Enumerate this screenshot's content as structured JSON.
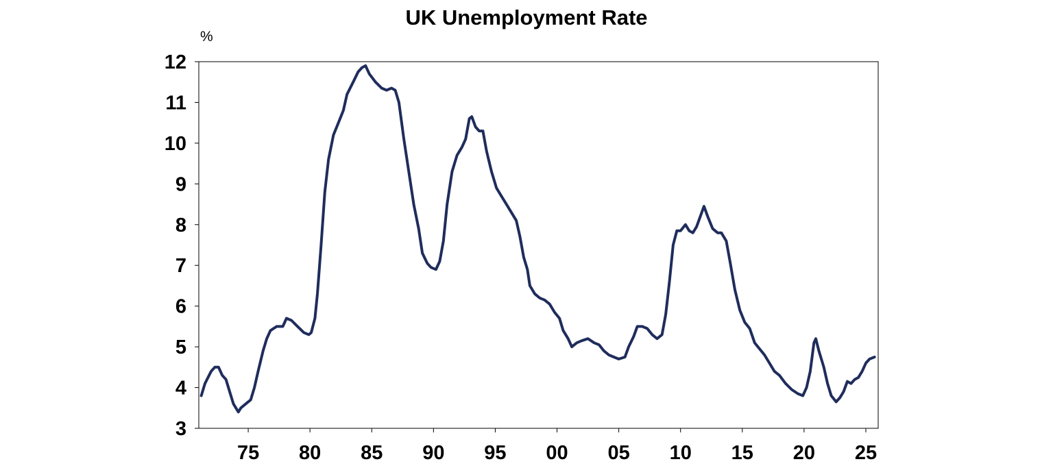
{
  "chart_data": {
    "type": "line",
    "title": "UK Unemployment Rate",
    "y_unit": "%",
    "xlabel": "",
    "ylabel": "",
    "xlim": [
      1971,
      2026
    ],
    "ylim": [
      3,
      12
    ],
    "y_ticks": [
      3,
      4,
      5,
      6,
      7,
      8,
      9,
      10,
      11,
      12
    ],
    "x_ticks": [
      {
        "year": 1975,
        "label": "75"
      },
      {
        "year": 1980,
        "label": "80"
      },
      {
        "year": 1985,
        "label": "85"
      },
      {
        "year": 1990,
        "label": "90"
      },
      {
        "year": 1995,
        "label": "95"
      },
      {
        "year": 2000,
        "label": "00"
      },
      {
        "year": 2005,
        "label": "05"
      },
      {
        "year": 2010,
        "label": "10"
      },
      {
        "year": 2015,
        "label": "15"
      },
      {
        "year": 2020,
        "label": "20"
      },
      {
        "year": 2025,
        "label": "25"
      }
    ],
    "grid": false,
    "line_color": "#1f2d5c",
    "series": [
      {
        "name": "",
        "points": [
          [
            1971.2,
            3.8
          ],
          [
            1971.5,
            4.1
          ],
          [
            1972.0,
            4.4
          ],
          [
            1972.3,
            4.5
          ],
          [
            1972.6,
            4.5
          ],
          [
            1972.9,
            4.3
          ],
          [
            1973.2,
            4.2
          ],
          [
            1973.5,
            3.9
          ],
          [
            1973.8,
            3.6
          ],
          [
            1974.2,
            3.4
          ],
          [
            1974.4,
            3.5
          ],
          [
            1974.8,
            3.6
          ],
          [
            1975.2,
            3.7
          ],
          [
            1975.5,
            4.0
          ],
          [
            1975.8,
            4.4
          ],
          [
            1976.2,
            4.9
          ],
          [
            1976.5,
            5.2
          ],
          [
            1976.8,
            5.4
          ],
          [
            1977.3,
            5.5
          ],
          [
            1977.8,
            5.5
          ],
          [
            1978.1,
            5.7
          ],
          [
            1978.5,
            5.65
          ],
          [
            1979.0,
            5.5
          ],
          [
            1979.5,
            5.35
          ],
          [
            1979.9,
            5.3
          ],
          [
            1980.1,
            5.35
          ],
          [
            1980.4,
            5.7
          ],
          [
            1980.6,
            6.3
          ],
          [
            1980.9,
            7.5
          ],
          [
            1981.2,
            8.8
          ],
          [
            1981.5,
            9.6
          ],
          [
            1981.9,
            10.2
          ],
          [
            1982.3,
            10.5
          ],
          [
            1982.7,
            10.8
          ],
          [
            1983.0,
            11.2
          ],
          [
            1983.5,
            11.5
          ],
          [
            1983.9,
            11.75
          ],
          [
            1984.2,
            11.85
          ],
          [
            1984.5,
            11.9
          ],
          [
            1984.8,
            11.7
          ],
          [
            1985.3,
            11.5
          ],
          [
            1985.8,
            11.35
          ],
          [
            1986.2,
            11.3
          ],
          [
            1986.6,
            11.35
          ],
          [
            1986.9,
            11.3
          ],
          [
            1987.2,
            11.0
          ],
          [
            1987.6,
            10.1
          ],
          [
            1988.0,
            9.3
          ],
          [
            1988.4,
            8.5
          ],
          [
            1988.8,
            7.9
          ],
          [
            1989.1,
            7.3
          ],
          [
            1989.5,
            7.05
          ],
          [
            1989.8,
            6.95
          ],
          [
            1990.2,
            6.9
          ],
          [
            1990.5,
            7.1
          ],
          [
            1990.8,
            7.6
          ],
          [
            1991.1,
            8.5
          ],
          [
            1991.5,
            9.3
          ],
          [
            1991.9,
            9.7
          ],
          [
            1992.3,
            9.9
          ],
          [
            1992.6,
            10.1
          ],
          [
            1992.9,
            10.6
          ],
          [
            1993.1,
            10.65
          ],
          [
            1993.4,
            10.4
          ],
          [
            1993.7,
            10.3
          ],
          [
            1994.0,
            10.3
          ],
          [
            1994.3,
            9.8
          ],
          [
            1994.7,
            9.3
          ],
          [
            1995.1,
            8.9
          ],
          [
            1995.5,
            8.7
          ],
          [
            1995.9,
            8.5
          ],
          [
            1996.3,
            8.3
          ],
          [
            1996.7,
            8.1
          ],
          [
            1997.0,
            7.7
          ],
          [
            1997.3,
            7.2
          ],
          [
            1997.6,
            6.9
          ],
          [
            1997.8,
            6.5
          ],
          [
            1998.2,
            6.3
          ],
          [
            1998.6,
            6.2
          ],
          [
            1999.0,
            6.15
          ],
          [
            1999.4,
            6.05
          ],
          [
            1999.8,
            5.85
          ],
          [
            2000.2,
            5.7
          ],
          [
            2000.5,
            5.4
          ],
          [
            2000.9,
            5.2
          ],
          [
            2001.2,
            5.0
          ],
          [
            2001.6,
            5.1
          ],
          [
            2002.0,
            5.15
          ],
          [
            2002.5,
            5.2
          ],
          [
            2003.0,
            5.1
          ],
          [
            2003.4,
            5.05
          ],
          [
            2003.8,
            4.9
          ],
          [
            2004.2,
            4.8
          ],
          [
            2004.6,
            4.75
          ],
          [
            2005.0,
            4.7
          ],
          [
            2005.5,
            4.75
          ],
          [
            2005.8,
            5.0
          ],
          [
            2006.2,
            5.25
          ],
          [
            2006.5,
            5.5
          ],
          [
            2006.9,
            5.5
          ],
          [
            2007.3,
            5.45
          ],
          [
            2007.7,
            5.3
          ],
          [
            2008.1,
            5.2
          ],
          [
            2008.5,
            5.3
          ],
          [
            2008.8,
            5.8
          ],
          [
            2009.1,
            6.6
          ],
          [
            2009.4,
            7.5
          ],
          [
            2009.7,
            7.85
          ],
          [
            2010.0,
            7.85
          ],
          [
            2010.4,
            8.0
          ],
          [
            2010.7,
            7.85
          ],
          [
            2011.0,
            7.8
          ],
          [
            2011.3,
            7.95
          ],
          [
            2011.6,
            8.2
          ],
          [
            2011.9,
            8.45
          ],
          [
            2012.2,
            8.2
          ],
          [
            2012.6,
            7.9
          ],
          [
            2013.0,
            7.8
          ],
          [
            2013.3,
            7.8
          ],
          [
            2013.7,
            7.6
          ],
          [
            2014.0,
            7.1
          ],
          [
            2014.4,
            6.4
          ],
          [
            2014.8,
            5.9
          ],
          [
            2015.2,
            5.6
          ],
          [
            2015.6,
            5.45
          ],
          [
            2016.0,
            5.1
          ],
          [
            2016.4,
            4.95
          ],
          [
            2016.8,
            4.8
          ],
          [
            2017.2,
            4.6
          ],
          [
            2017.6,
            4.4
          ],
          [
            2018.0,
            4.3
          ],
          [
            2018.5,
            4.1
          ],
          [
            2019.0,
            3.95
          ],
          [
            2019.5,
            3.85
          ],
          [
            2019.9,
            3.8
          ],
          [
            2020.2,
            4.0
          ],
          [
            2020.5,
            4.4
          ],
          [
            2020.8,
            5.1
          ],
          [
            2020.95,
            5.2
          ],
          [
            2021.2,
            4.9
          ],
          [
            2021.6,
            4.5
          ],
          [
            2021.9,
            4.1
          ],
          [
            2022.2,
            3.8
          ],
          [
            2022.6,
            3.65
          ],
          [
            2022.9,
            3.75
          ],
          [
            2023.2,
            3.9
          ],
          [
            2023.5,
            4.15
          ],
          [
            2023.8,
            4.1
          ],
          [
            2024.1,
            4.2
          ],
          [
            2024.4,
            4.25
          ],
          [
            2024.7,
            4.4
          ],
          [
            2025.0,
            4.6
          ],
          [
            2025.3,
            4.7
          ],
          [
            2025.7,
            4.75
          ]
        ]
      }
    ]
  }
}
